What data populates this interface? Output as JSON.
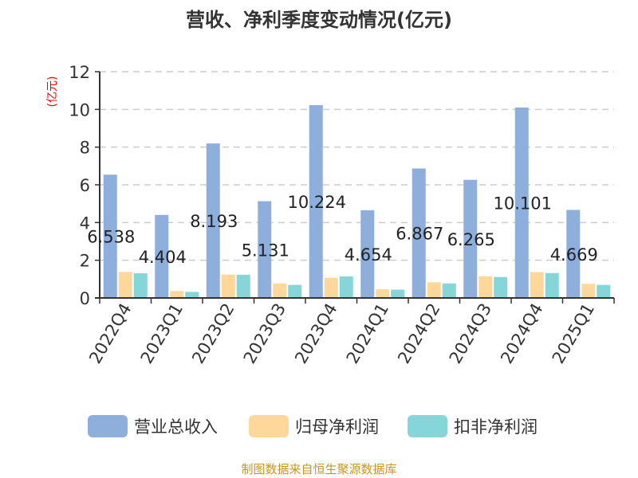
{
  "chart_data": {
    "type": "bar",
    "title": "营收、净利季度变动情况(亿元)",
    "ylabel": "(亿元)",
    "xlabel": "",
    "ylim": [
      0,
      12
    ],
    "yticks": [
      0,
      2,
      4,
      6,
      8,
      10,
      12
    ],
    "grid": true,
    "legend_position": "bottom",
    "categories": [
      "2022Q4",
      "2023Q1",
      "2023Q2",
      "2023Q3",
      "2023Q4",
      "2024Q1",
      "2024Q2",
      "2024Q3",
      "2024Q4",
      "2025Q1"
    ],
    "series": [
      {
        "name": "营业总收入",
        "color": "#8eaedb",
        "values": [
          6.538,
          4.404,
          8.193,
          5.131,
          10.224,
          4.654,
          6.867,
          6.265,
          10.101,
          4.669
        ],
        "labels": [
          "6.538",
          "4.404",
          "8.193",
          "5.131",
          "10.224",
          "4.654",
          "6.867",
          "6.265",
          "10.101",
          "4.669"
        ]
      },
      {
        "name": "归母净利润",
        "color": "#fdd89a",
        "values": [
          1.38,
          0.37,
          1.24,
          0.77,
          1.07,
          0.46,
          0.83,
          1.15,
          1.37,
          0.75
        ]
      },
      {
        "name": "扣非净利润",
        "color": "#86d5d8",
        "values": [
          1.31,
          0.32,
          1.23,
          0.69,
          1.14,
          0.44,
          0.77,
          1.11,
          1.32,
          0.69
        ]
      }
    ]
  },
  "footer": "制图数据来自恒生聚源数据库"
}
